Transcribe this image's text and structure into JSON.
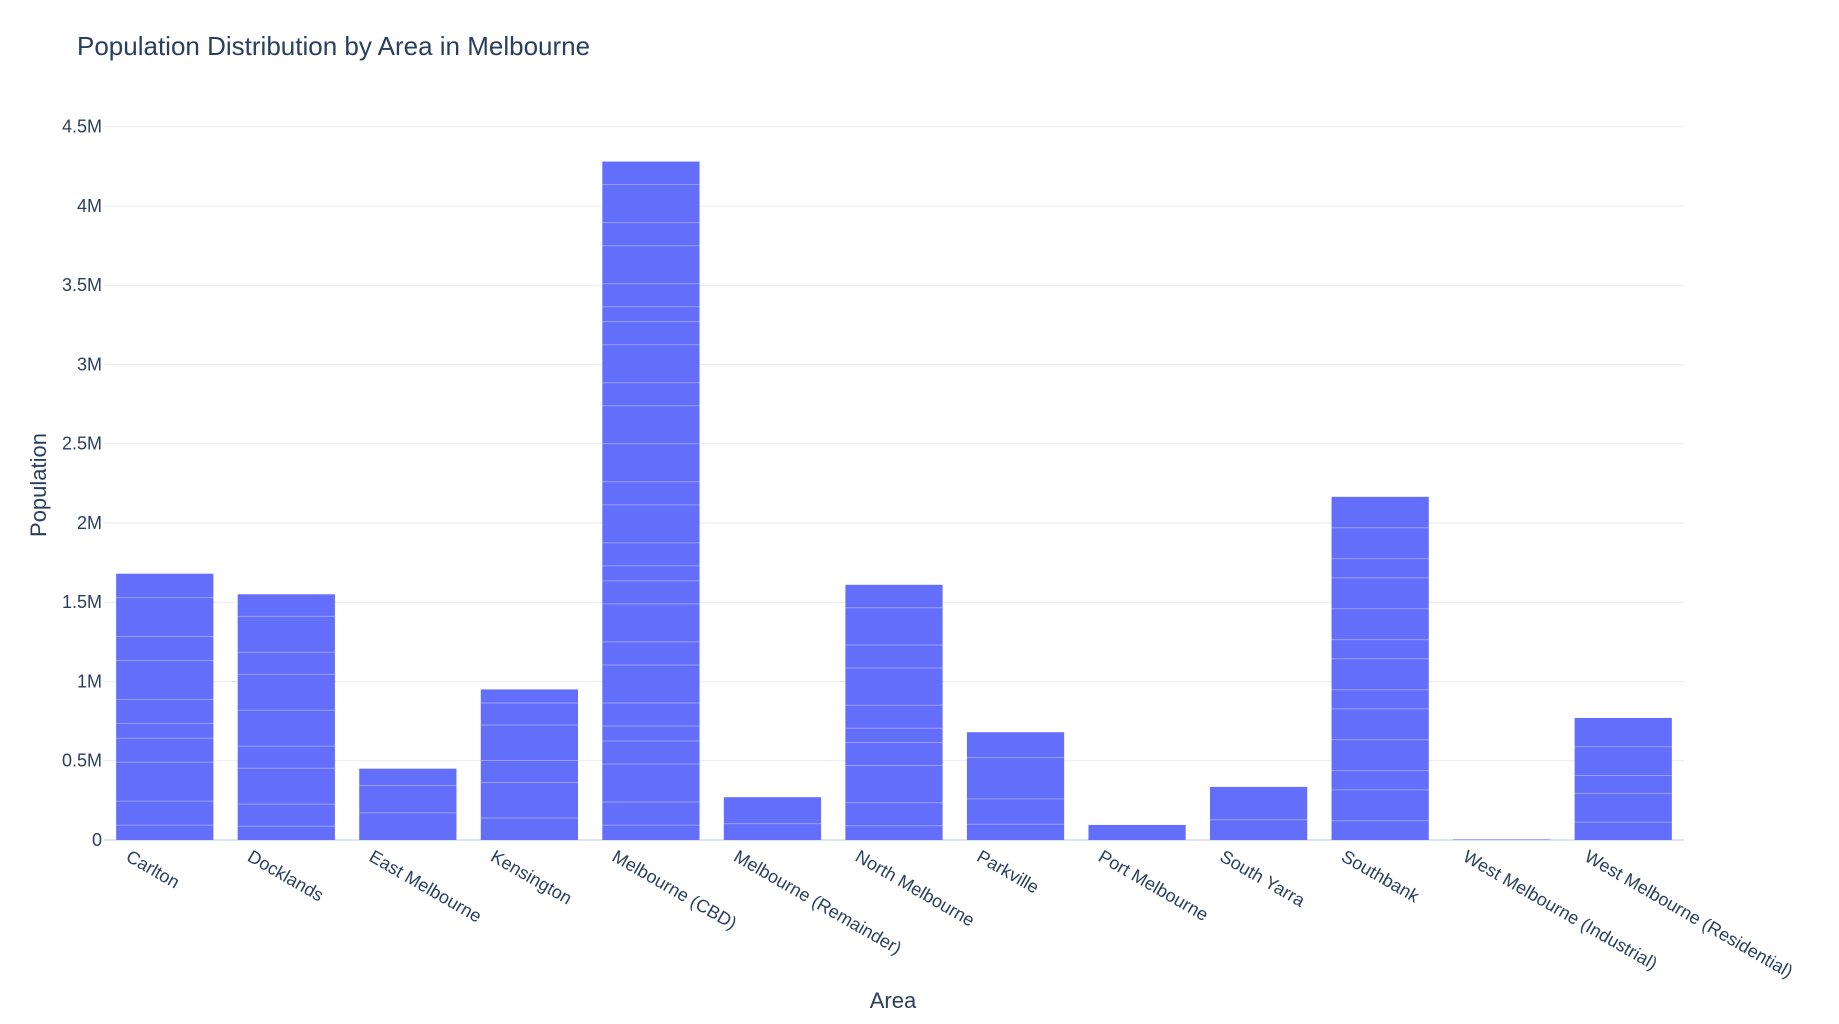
{
  "chart_data": {
    "type": "bar",
    "title": "Population Distribution by Area in Melbourne",
    "xlabel": "Area",
    "ylabel": "Population",
    "ylim": [
      0,
      4700000
    ],
    "yticks": [
      {
        "value": 0,
        "label": "0"
      },
      {
        "value": 500000,
        "label": "0.5M"
      },
      {
        "value": 1000000,
        "label": "1M"
      },
      {
        "value": 1500000,
        "label": "1.5M"
      },
      {
        "value": 2000000,
        "label": "2M"
      },
      {
        "value": 2500000,
        "label": "2.5M"
      },
      {
        "value": 3000000,
        "label": "3M"
      },
      {
        "value": 3500000,
        "label": "3.5M"
      },
      {
        "value": 4000000,
        "label": "4M"
      },
      {
        "value": 4500000,
        "label": "4.5M"
      }
    ],
    "categories": [
      "Carlton",
      "Docklands",
      "East Melbourne",
      "Kensington",
      "Melbourne (CBD)",
      "Melbourne (Remainder)",
      "North Melbourne",
      "Parkville",
      "Port Melbourne",
      "South Yarra",
      "Southbank",
      "West Melbourne (Industrial)",
      "West Melbourne (Residential)"
    ],
    "values": [
      1680000,
      1550000,
      450000,
      950000,
      4280000,
      270000,
      1610000,
      680000,
      95000,
      335000,
      2165000,
      3000,
      770000
    ],
    "grid": true,
    "legend": "none",
    "colors": {
      "bar": "#636efa",
      "text": "#2a3f5f",
      "grid": "#e6ebf3"
    }
  }
}
